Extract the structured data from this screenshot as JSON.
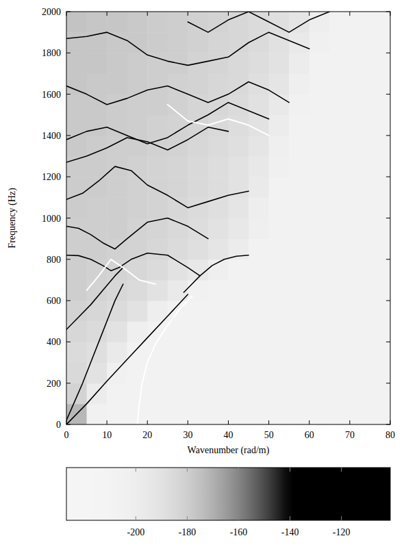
{
  "chart_data": {
    "type": "heatmap",
    "x_label": "Wavenumber (rad/m)",
    "y_label": "Frequency (Hz)",
    "xlim": [
      0,
      80
    ],
    "ylim": [
      0,
      2000
    ],
    "xticks": [
      0,
      10,
      20,
      30,
      40,
      50,
      60,
      70,
      80
    ],
    "yticks": [
      0,
      200,
      400,
      600,
      800,
      1000,
      1200,
      1400,
      1600,
      1800,
      2000
    ],
    "cell_x_edges": [
      0,
      5,
      10,
      15,
      20,
      25,
      30,
      35,
      40,
      45,
      50,
      55,
      60,
      65,
      70,
      75,
      80
    ],
    "cell_y_edges": [
      0,
      100,
      200,
      300,
      400,
      500,
      600,
      700,
      800,
      900,
      1000,
      1100,
      1200,
      1300,
      1400,
      1500,
      1600,
      1700,
      1800,
      1900,
      2000
    ],
    "cells": [
      [
        -172,
        -205,
        -208,
        -208,
        -208,
        -208,
        -208,
        -208,
        -208,
        -208,
        -208,
        -208,
        -208,
        -208,
        -208,
        -208
      ],
      [
        -182,
        -198,
        -208,
        -208,
        -208,
        -208,
        -208,
        -208,
        -208,
        -208,
        -208,
        -208,
        -208,
        -208,
        -208,
        -208
      ],
      [
        -185,
        -190,
        -204,
        -208,
        -208,
        -208,
        -208,
        -208,
        -208,
        -208,
        -208,
        -208,
        -208,
        -208,
        -208,
        -208
      ],
      [
        -186,
        -188,
        -196,
        -208,
        -208,
        -208,
        -208,
        -208,
        -208,
        -208,
        -208,
        -208,
        -208,
        -208,
        -208,
        -208
      ],
      [
        -184,
        -186,
        -190,
        -202,
        -208,
        -208,
        -208,
        -208,
        -208,
        -208,
        -208,
        -208,
        -208,
        -208,
        -208,
        -208
      ],
      [
        -182,
        -184,
        -186,
        -190,
        -200,
        -208,
        -208,
        -208,
        -208,
        -208,
        -208,
        -208,
        -208,
        -208,
        -208,
        -208
      ],
      [
        -180,
        -182,
        -184,
        -186,
        -190,
        -196,
        -205,
        -208,
        -208,
        -208,
        -208,
        -208,
        -208,
        -208,
        -208,
        -208
      ],
      [
        -180,
        -181,
        -182,
        -184,
        -186,
        -190,
        -194,
        -202,
        -208,
        -208,
        -208,
        -208,
        -208,
        -208,
        -208,
        -208
      ],
      [
        -180,
        -180,
        -181,
        -182,
        -184,
        -186,
        -188,
        -192,
        -198,
        -206,
        -208,
        -208,
        -208,
        -208,
        -208,
        -208
      ],
      [
        -180,
        -180,
        -180,
        -182,
        -183,
        -185,
        -187,
        -190,
        -194,
        -202,
        -208,
        -208,
        -208,
        -208,
        -208,
        -208
      ],
      [
        -179,
        -180,
        -180,
        -181,
        -182,
        -184,
        -186,
        -188,
        -192,
        -200,
        -208,
        -208,
        -208,
        -208,
        -208,
        -208
      ],
      [
        -179,
        -179,
        -180,
        -181,
        -182,
        -183,
        -185,
        -187,
        -190,
        -196,
        -206,
        -208,
        -208,
        -208,
        -208,
        -208
      ],
      [
        -179,
        -179,
        -180,
        -181,
        -182,
        -183,
        -185,
        -187,
        -190,
        -194,
        -204,
        -208,
        -208,
        -208,
        -208,
        -208
      ],
      [
        -178,
        -179,
        -180,
        -180,
        -181,
        -182,
        -184,
        -186,
        -188,
        -192,
        -202,
        -208,
        -208,
        -208,
        -208,
        -208
      ],
      [
        -178,
        -178,
        -179,
        -180,
        -181,
        -182,
        -183,
        -185,
        -187,
        -190,
        -198,
        -207,
        -208,
        -208,
        -208,
        -208
      ],
      [
        -178,
        -178,
        -179,
        -180,
        -180,
        -181,
        -183,
        -184,
        -186,
        -189,
        -195,
        -205,
        -208,
        -208,
        -208,
        -208
      ],
      [
        -177,
        -178,
        -178,
        -179,
        -180,
        -181,
        -182,
        -184,
        -185,
        -188,
        -192,
        -202,
        -208,
        -208,
        -208,
        -208
      ],
      [
        -177,
        -177,
        -178,
        -179,
        -180,
        -180,
        -182,
        -183,
        -185,
        -187,
        -190,
        -198,
        -207,
        -208,
        -208,
        -208
      ],
      [
        -177,
        -177,
        -178,
        -178,
        -179,
        -180,
        -181,
        -183,
        -184,
        -186,
        -189,
        -195,
        -204,
        -208,
        -208,
        -208
      ],
      [
        -176,
        -177,
        -177,
        -178,
        -179,
        -180,
        -181,
        -182,
        -184,
        -186,
        -188,
        -192,
        -200,
        -207,
        -208,
        -208
      ]
    ],
    "colorbar": {
      "lim": [
        -227,
        -101
      ],
      "ticks": [
        -200,
        -180,
        -160,
        -140,
        -120
      ]
    },
    "series": [
      {
        "type": "line",
        "color": "#000000",
        "x": [
          0,
          5,
          10,
          15,
          20,
          25,
          30
        ],
        "values": [
          0,
          100,
          210,
          315,
          420,
          525,
          630
        ]
      },
      {
        "type": "line",
        "color": "#000000",
        "x": [
          0,
          2,
          4,
          6,
          8,
          10,
          12,
          14
        ],
        "values": [
          20,
          110,
          200,
          300,
          400,
          500,
          600,
          680
        ]
      },
      {
        "type": "line",
        "color": "#000000",
        "x": [
          0,
          3,
          6,
          9,
          12,
          14
        ],
        "values": [
          460,
          520,
          580,
          650,
          720,
          760
        ]
      },
      {
        "type": "line",
        "color": "#000000",
        "x": [
          0,
          3,
          6,
          9,
          11,
          13,
          16,
          20,
          25,
          30,
          33
        ],
        "values": [
          820,
          818,
          800,
          770,
          745,
          760,
          800,
          830,
          820,
          760,
          720
        ]
      },
      {
        "type": "line",
        "color": "#000000",
        "x": [
          29,
          31,
          33,
          36,
          39,
          42,
          45
        ],
        "values": [
          640,
          680,
          720,
          770,
          800,
          815,
          820
        ]
      },
      {
        "type": "line",
        "color": "#000000",
        "x": [
          0,
          3,
          6,
          9,
          12,
          15,
          20,
          25,
          30,
          35
        ],
        "values": [
          960,
          950,
          920,
          880,
          850,
          900,
          980,
          1000,
          960,
          900
        ]
      },
      {
        "type": "line",
        "color": "#000000",
        "x": [
          0,
          4,
          8,
          12,
          16,
          20,
          25,
          30,
          35,
          40,
          45
        ],
        "values": [
          1090,
          1120,
          1180,
          1250,
          1230,
          1160,
          1110,
          1050,
          1080,
          1110,
          1130
        ]
      },
      {
        "type": "line",
        "color": "#000000",
        "x": [
          0,
          5,
          10,
          15,
          20,
          25,
          30,
          35,
          40
        ],
        "values": [
          1270,
          1300,
          1340,
          1390,
          1370,
          1330,
          1380,
          1440,
          1420
        ]
      },
      {
        "type": "line",
        "color": "#000000",
        "x": [
          0,
          5,
          10,
          15,
          20,
          25,
          30,
          35,
          40,
          45,
          50
        ],
        "values": [
          1380,
          1420,
          1440,
          1400,
          1360,
          1390,
          1450,
          1500,
          1560,
          1520,
          1480
        ]
      },
      {
        "type": "line",
        "color": "#000000",
        "x": [
          0,
          5,
          10,
          15,
          20,
          25,
          30,
          35,
          40,
          45,
          50,
          55
        ],
        "values": [
          1640,
          1600,
          1550,
          1580,
          1620,
          1640,
          1600,
          1560,
          1600,
          1660,
          1620,
          1560
        ]
      },
      {
        "type": "line",
        "color": "#000000",
        "x": [
          0,
          5,
          10,
          15,
          20,
          25,
          30,
          35,
          40,
          45,
          50,
          55,
          60
        ],
        "values": [
          1870,
          1880,
          1900,
          1860,
          1790,
          1760,
          1740,
          1760,
          1780,
          1850,
          1900,
          1860,
          1820
        ]
      },
      {
        "type": "line",
        "color": "#000000",
        "x": [
          30,
          35,
          40,
          45,
          50,
          55,
          60,
          65
        ],
        "values": [
          1950,
          1900,
          1960,
          2000,
          1950,
          1900,
          1960,
          2000
        ]
      },
      {
        "type": "line",
        "color": "#ffffff",
        "x": [
          17.5,
          18,
          18.7,
          20,
          22,
          25,
          28,
          31
        ],
        "values": [
          0,
          100,
          200,
          300,
          390,
          480,
          560,
          620
        ]
      },
      {
        "type": "line",
        "color": "#ffffff",
        "x": [
          5,
          8,
          11,
          14,
          18,
          22
        ],
        "values": [
          650,
          720,
          800,
          760,
          700,
          680
        ]
      },
      {
        "type": "line",
        "color": "#ffffff",
        "x": [
          25,
          30,
          35,
          40,
          45,
          50
        ],
        "values": [
          1550,
          1470,
          1450,
          1480,
          1450,
          1400
        ]
      }
    ]
  }
}
